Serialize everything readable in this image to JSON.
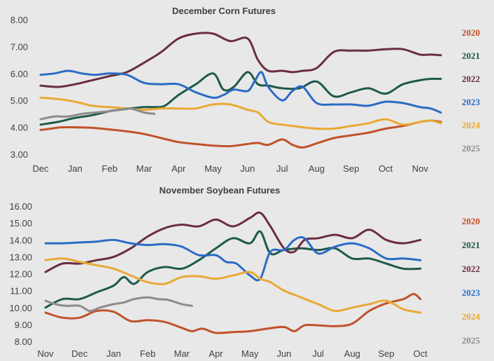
{
  "chart_data": [
    {
      "type": "line",
      "title": "December Corn Futures",
      "x_tick_labels": [
        "Dec",
        "Jan",
        "Feb",
        "Mar",
        "Apr",
        "May",
        "Jun",
        "Jul",
        "Aug",
        "Sep",
        "Oct",
        "Nov"
      ],
      "y_tick_labels": [
        "8.00",
        "7.00",
        "6.00",
        "5.00",
        "4.00",
        "3.00"
      ],
      "ylim": [
        3,
        8
      ],
      "grid": false,
      "legend_position": "right",
      "series": [
        {
          "name": "2020",
          "color": "#c0522b",
          "x": [
            0,
            0.3,
            0.6,
            1,
            1.5,
            2,
            2.5,
            3,
            3.5,
            4,
            4.5,
            5,
            5.5,
            6,
            6.3,
            6.6,
            7,
            7.3,
            7.6,
            8,
            8.5,
            9,
            9.5,
            10,
            10.5,
            11,
            11.3,
            11.6
          ],
          "values": [
            3.9,
            3.95,
            4.0,
            4.0,
            3.98,
            3.92,
            3.85,
            3.75,
            3.6,
            3.45,
            3.38,
            3.32,
            3.3,
            3.38,
            3.42,
            3.35,
            3.55,
            3.35,
            3.25,
            3.4,
            3.6,
            3.7,
            3.8,
            3.95,
            4.05,
            4.2,
            4.25,
            4.2
          ]
        },
        {
          "name": "2021",
          "color": "#1d5a48",
          "x": [
            0,
            0.5,
            1,
            1.5,
            2,
            2.3,
            2.6,
            3,
            3.3,
            3.6,
            4,
            4.5,
            5,
            5.3,
            5.6,
            6,
            6.3,
            6.6,
            7,
            7.5,
            8,
            8.5,
            9,
            9.5,
            10,
            10.5,
            11,
            11.3,
            11.6
          ],
          "values": [
            4.1,
            4.2,
            4.35,
            4.45,
            4.6,
            4.65,
            4.7,
            4.75,
            4.75,
            4.8,
            5.2,
            5.6,
            6.0,
            5.4,
            5.5,
            6.05,
            5.6,
            5.55,
            5.45,
            5.45,
            5.7,
            5.15,
            5.3,
            5.45,
            5.25,
            5.6,
            5.75,
            5.8,
            5.8
          ]
        },
        {
          "name": "2022",
          "color": "#6a2e40",
          "x": [
            0,
            0.5,
            1,
            1.5,
            2,
            2.5,
            3,
            3.5,
            4,
            4.5,
            5,
            5.5,
            6,
            6.3,
            6.6,
            7,
            7.3,
            7.6,
            8,
            8.5,
            9,
            9.5,
            10,
            10.5,
            11,
            11.3,
            11.6
          ],
          "values": [
            5.55,
            5.5,
            5.6,
            5.75,
            5.9,
            6.05,
            6.4,
            6.8,
            7.3,
            7.48,
            7.48,
            7.2,
            7.3,
            6.5,
            6.1,
            6.1,
            6.05,
            6.1,
            6.2,
            6.8,
            6.85,
            6.85,
            6.9,
            6.9,
            6.7,
            6.7,
            6.68
          ]
        },
        {
          "name": "2023",
          "color": "#2b6cc4",
          "x": [
            0,
            0.4,
            0.8,
            1.2,
            1.6,
            2,
            2.5,
            3,
            3.5,
            4,
            4.5,
            5,
            5.3,
            5.6,
            6,
            6.2,
            6.4,
            6.6,
            7,
            7.3,
            7.6,
            8,
            8.5,
            9,
            9.5,
            10,
            10.5,
            11,
            11.3,
            11.6
          ],
          "values": [
            5.95,
            6.0,
            6.1,
            6.0,
            5.95,
            6.0,
            5.95,
            5.65,
            5.6,
            5.6,
            5.3,
            5.1,
            5.2,
            5.4,
            5.35,
            5.7,
            6.05,
            5.5,
            5.0,
            5.35,
            5.5,
            4.9,
            4.85,
            4.85,
            4.8,
            4.95,
            4.9,
            4.75,
            4.7,
            4.55
          ]
        },
        {
          "name": "2024",
          "color": "#e8a935",
          "x": [
            0,
            0.5,
            1,
            1.5,
            2,
            2.5,
            3,
            3.5,
            4,
            4.5,
            5,
            5.5,
            6,
            6.3,
            6.6,
            7,
            7.3,
            7.6,
            8,
            8.5,
            9,
            9.5,
            10,
            10.5,
            11,
            11.3,
            11.6
          ],
          "values": [
            5.1,
            5.05,
            4.95,
            4.8,
            4.75,
            4.7,
            4.65,
            4.7,
            4.7,
            4.7,
            4.85,
            4.85,
            4.65,
            4.55,
            4.2,
            4.1,
            4.05,
            4.0,
            3.95,
            3.95,
            4.05,
            4.15,
            4.3,
            4.1,
            4.2,
            4.25,
            4.15
          ]
        },
        {
          "name": "2025",
          "color": "#8c8c8c",
          "x": [
            0,
            0.4,
            0.8,
            1.2,
            1.6,
            2,
            2.3,
            2.6,
            3,
            3.3
          ],
          "values": [
            4.3,
            4.4,
            4.4,
            4.5,
            4.55,
            4.6,
            4.65,
            4.7,
            4.55,
            4.5
          ]
        }
      ]
    },
    {
      "type": "line",
      "title": "November Soybean Futures",
      "x_tick_labels": [
        "Nov",
        "Dec",
        "Jan",
        "Feb",
        "Mar",
        "Apr",
        "May",
        "Jun",
        "Jul",
        "Aug",
        "Sep",
        "Oct"
      ],
      "y_tick_labels": [
        "16.00",
        "15.00",
        "14.00",
        "13.00",
        "12.00",
        "11.00",
        "10.00",
        "9.00",
        "8.00"
      ],
      "ylim": [
        8,
        16
      ],
      "grid": false,
      "legend_position": "right",
      "series": [
        {
          "name": "2020",
          "color": "#c0522b",
          "x": [
            0,
            0.5,
            1,
            1.5,
            2,
            2.5,
            3,
            3.5,
            4,
            4.3,
            4.6,
            5,
            5.5,
            6,
            6.5,
            7,
            7.3,
            7.6,
            8,
            8.5,
            9,
            9.5,
            10,
            10.5,
            10.8,
            11
          ],
          "values": [
            9.7,
            9.4,
            9.4,
            9.8,
            9.75,
            9.2,
            9.25,
            9.15,
            8.8,
            8.6,
            8.75,
            8.5,
            8.55,
            8.6,
            8.75,
            8.85,
            8.6,
            8.95,
            8.95,
            8.9,
            9.05,
            9.8,
            10.25,
            10.5,
            10.8,
            10.5
          ]
        },
        {
          "name": "2021",
          "color": "#1d5a48",
          "x": [
            0,
            0.5,
            1,
            1.5,
            2,
            2.3,
            2.6,
            3,
            3.5,
            4,
            4.5,
            5,
            5.5,
            6,
            6.3,
            6.6,
            7,
            7.5,
            8,
            8.5,
            9,
            9.5,
            10,
            10.5,
            11
          ],
          "values": [
            10.0,
            10.5,
            10.5,
            10.9,
            11.3,
            11.8,
            11.4,
            12.1,
            12.4,
            12.3,
            12.8,
            13.5,
            14.1,
            13.8,
            14.5,
            13.2,
            13.4,
            13.5,
            13.4,
            13.5,
            12.9,
            12.9,
            12.6,
            12.3,
            12.3
          ]
        },
        {
          "name": "2022",
          "color": "#6a2e40",
          "x": [
            0,
            0.5,
            1,
            1.5,
            2,
            2.5,
            3,
            3.5,
            4,
            4.5,
            5,
            5.5,
            6,
            6.3,
            6.6,
            7,
            7.3,
            7.6,
            8,
            8.5,
            9,
            9.5,
            10,
            10.5,
            11
          ],
          "values": [
            12.1,
            12.6,
            12.6,
            12.8,
            13.0,
            13.5,
            14.2,
            14.7,
            14.9,
            14.8,
            15.2,
            14.8,
            15.3,
            15.6,
            14.8,
            13.5,
            13.3,
            14.0,
            14.1,
            14.3,
            14.1,
            14.6,
            14.0,
            13.8,
            14.0
          ]
        },
        {
          "name": "2023",
          "color": "#2b6cc4",
          "x": [
            0,
            0.5,
            1,
            1.5,
            2,
            2.5,
            3,
            3.5,
            4,
            4.5,
            5,
            5.3,
            5.6,
            6,
            6.3,
            6.6,
            7,
            7.3,
            7.6,
            8,
            8.5,
            9,
            9.5,
            10,
            10.5,
            11
          ],
          "values": [
            13.8,
            13.8,
            13.85,
            13.9,
            14.0,
            13.8,
            13.7,
            13.75,
            13.6,
            13.1,
            13.1,
            12.7,
            12.6,
            11.9,
            11.7,
            13.3,
            13.4,
            14.0,
            14.1,
            13.2,
            13.6,
            13.8,
            13.5,
            12.9,
            12.9,
            12.8
          ]
        },
        {
          "name": "2024",
          "color": "#e8a935",
          "x": [
            0,
            0.5,
            1,
            1.5,
            2,
            2.5,
            3,
            3.5,
            4,
            4.5,
            5,
            5.5,
            6,
            6.3,
            6.6,
            7,
            7.5,
            8,
            8.5,
            9,
            9.5,
            10,
            10.5,
            11
          ],
          "values": [
            12.8,
            12.9,
            12.7,
            12.5,
            12.3,
            11.9,
            11.5,
            11.4,
            11.8,
            11.85,
            11.7,
            11.9,
            12.1,
            11.7,
            11.5,
            11.0,
            10.6,
            10.2,
            9.8,
            10.0,
            10.2,
            10.4,
            9.9,
            9.7
          ]
        },
        {
          "name": "2025",
          "color": "#8c8c8c",
          "x": [
            0,
            0.3,
            0.6,
            1,
            1.3,
            1.6,
            2,
            2.3,
            2.6,
            3,
            3.3,
            3.6,
            4,
            4.3
          ],
          "values": [
            10.4,
            10.2,
            10.1,
            10.1,
            9.8,
            10.0,
            10.2,
            10.3,
            10.5,
            10.6,
            10.5,
            10.45,
            10.2,
            10.1
          ]
        }
      ]
    }
  ]
}
